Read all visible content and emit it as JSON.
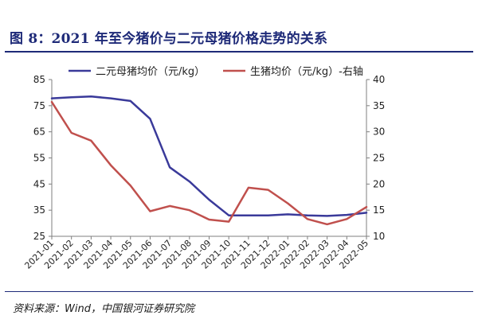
{
  "header": {
    "title": "图 8：2021 年至今猪价与二元母猪价格走势的关系"
  },
  "footer": {
    "source": "资料来源：Wind，中国银河证券研究院"
  },
  "colors": {
    "title": "#1e2a78",
    "sow_series": "#3a3a9a",
    "hog_series": "#c0504d",
    "axis": "#7f7f7f"
  },
  "chart_data": {
    "type": "line",
    "x": [
      "2021-01",
      "2021-02",
      "2021-03",
      "2021-04",
      "2021-05",
      "2021-06",
      "2021-07",
      "2021-08",
      "2021-09",
      "2021-10",
      "2021-11",
      "2021-12",
      "2022-01",
      "2022-02",
      "2022-03",
      "2022-04",
      "2022-05"
    ],
    "x_ticks": [
      "2021-01",
      "2021-02",
      "2021-03",
      "2021-04",
      "2021-05",
      "2021-06",
      "2021-07",
      "2021-08",
      "2021-09",
      "2021-10",
      "2021-11",
      "2021-12",
      "2022-01",
      "2022-02",
      "2022-03",
      "2022-04",
      "2022-05"
    ],
    "y_left": {
      "ylim": [
        25,
        85
      ],
      "ticks": [
        25,
        35,
        45,
        55,
        65,
        75,
        85
      ]
    },
    "y_right": {
      "ylim": [
        10,
        40
      ],
      "ticks": [
        10,
        15,
        20,
        25,
        30,
        35,
        40
      ]
    },
    "grid": false,
    "legend_position": "top",
    "series": [
      {
        "name": "二元母猪均价（元/kg）",
        "axis": "left",
        "color": "#3a3a9a",
        "values": [
          77.8,
          78.2,
          78.5,
          77.8,
          76.8,
          70.0,
          51.4,
          46.0,
          39.0,
          33.0,
          33.0,
          33.0,
          33.4,
          33.0,
          32.8,
          33.2,
          34.0
        ]
      },
      {
        "name": "生猪均价（元/kg）-右轴",
        "axis": "right",
        "color": "#c0504d",
        "values": [
          35.7,
          29.8,
          28.3,
          23.6,
          19.7,
          14.8,
          15.8,
          15.0,
          13.2,
          12.8,
          19.3,
          18.9,
          16.3,
          13.3,
          12.3,
          13.3,
          15.6
        ]
      }
    ]
  }
}
